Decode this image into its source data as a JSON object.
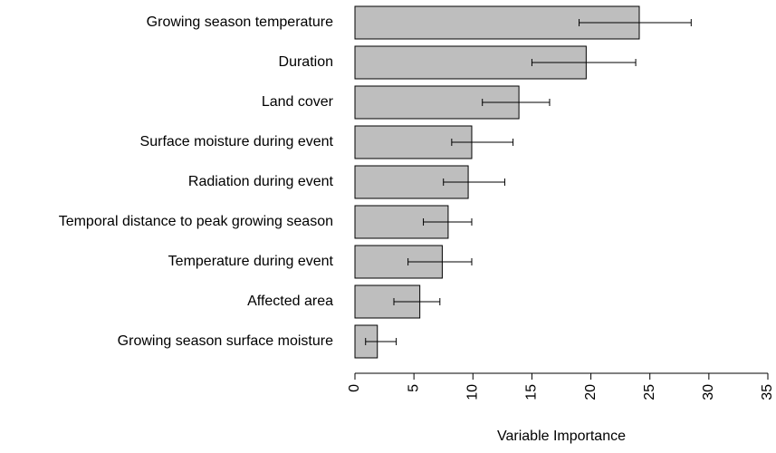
{
  "chart_data": {
    "type": "bar",
    "orientation": "horizontal",
    "x_label": "Variable Importance",
    "categories": [
      "Growing season temperature",
      "Duration",
      "Land cover",
      "Surface moisture during event",
      "Radiation during event",
      "Temporal distance to peak growing season",
      "Temperature during event",
      "Affected area",
      "Growing season surface moisture"
    ],
    "values": [
      24.1,
      19.6,
      13.9,
      9.9,
      9.6,
      7.9,
      7.4,
      5.5,
      1.9
    ],
    "lower": [
      19.0,
      15.0,
      10.8,
      8.2,
      7.5,
      5.8,
      4.5,
      3.3,
      0.9
    ],
    "upper": [
      28.5,
      23.8,
      16.5,
      13.4,
      12.7,
      9.9,
      9.9,
      7.2,
      3.5
    ],
    "color": "#bebebe",
    "xlim": [
      0,
      35
    ],
    "xticks": [
      0,
      5,
      10,
      15,
      20,
      25,
      30,
      35
    ]
  }
}
